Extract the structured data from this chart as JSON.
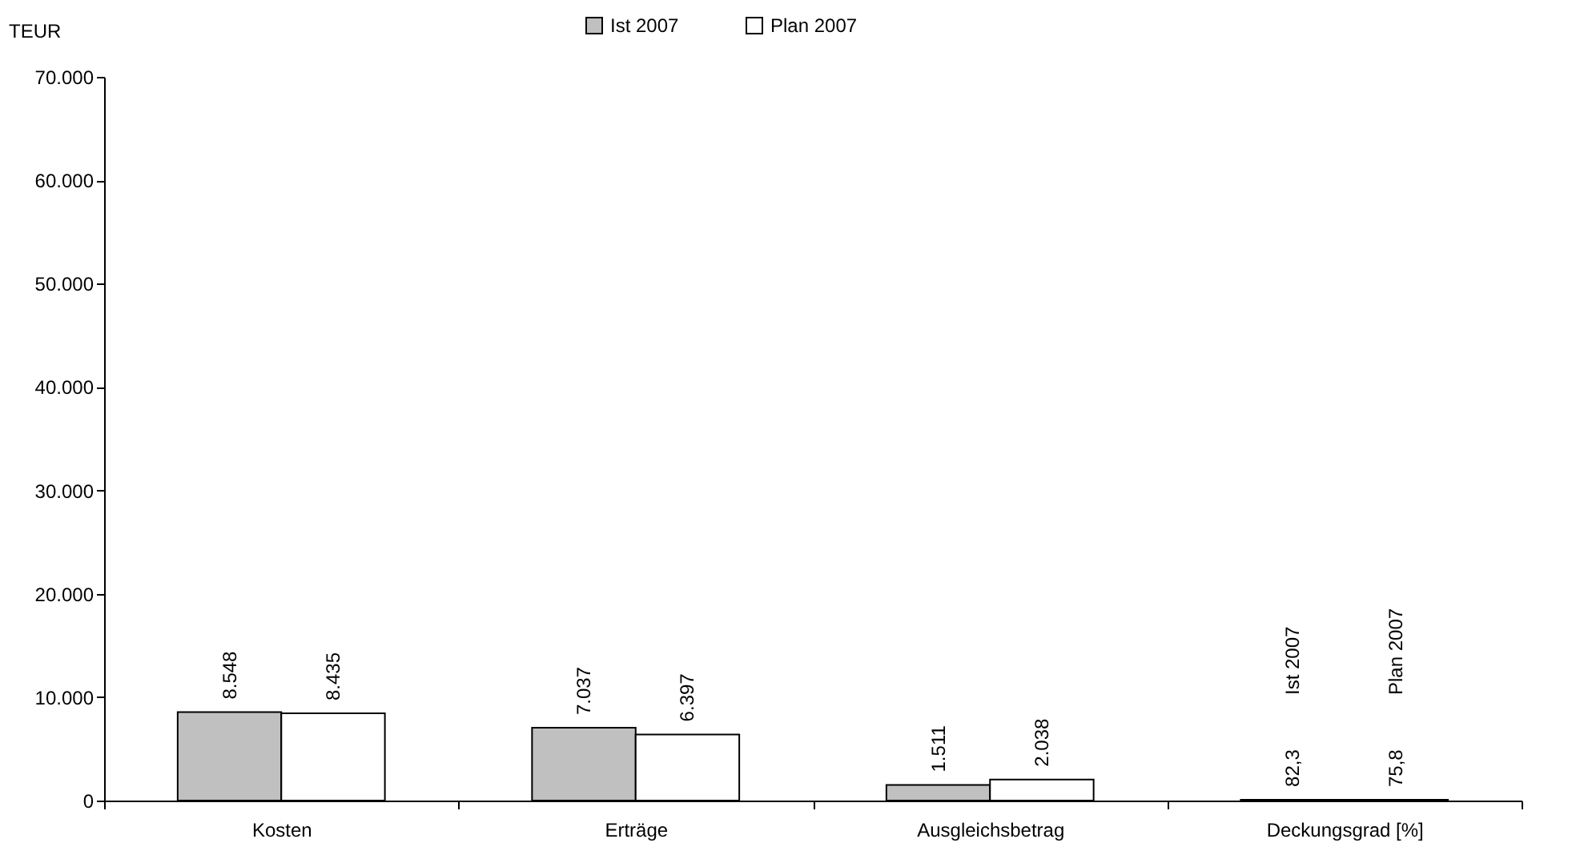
{
  "chart_data": {
    "type": "bar",
    "ylabel": "TEUR",
    "categories": [
      "Kosten",
      "Erträge",
      "Ausgleichsbetrag",
      "Deckungsgrad [%]"
    ],
    "series": [
      {
        "name": "Ist 2007",
        "color": "#c0c0c0",
        "values": [
          8548,
          7037,
          1511,
          82.3
        ],
        "value_labels": [
          "8.548",
          "7.037",
          "1.511",
          "82,3"
        ]
      },
      {
        "name": "Plan 2007",
        "color": "#ffffff",
        "values": [
          8435,
          6397,
          2038,
          75.8
        ],
        "value_labels": [
          "8.435",
          "6.397",
          "2.038",
          "75,8"
        ]
      }
    ],
    "ylim": [
      0,
      70000
    ],
    "yticks": [
      0,
      {
        "value": 10000,
        "label": "10.000"
      },
      {
        "value": 20000,
        "label": "20.000"
      },
      {
        "value": 30000,
        "label": "30.000"
      },
      {
        "value": 40000,
        "label": "40.000"
      },
      {
        "value": 50000,
        "label": "50.000"
      },
      {
        "value": 60000,
        "label": "60.000"
      },
      {
        "value": 70000,
        "label": "70.000"
      }
    ],
    "annotations": [
      "Ist 2007",
      "Plan 2007"
    ],
    "grid": false,
    "legend": "top"
  }
}
